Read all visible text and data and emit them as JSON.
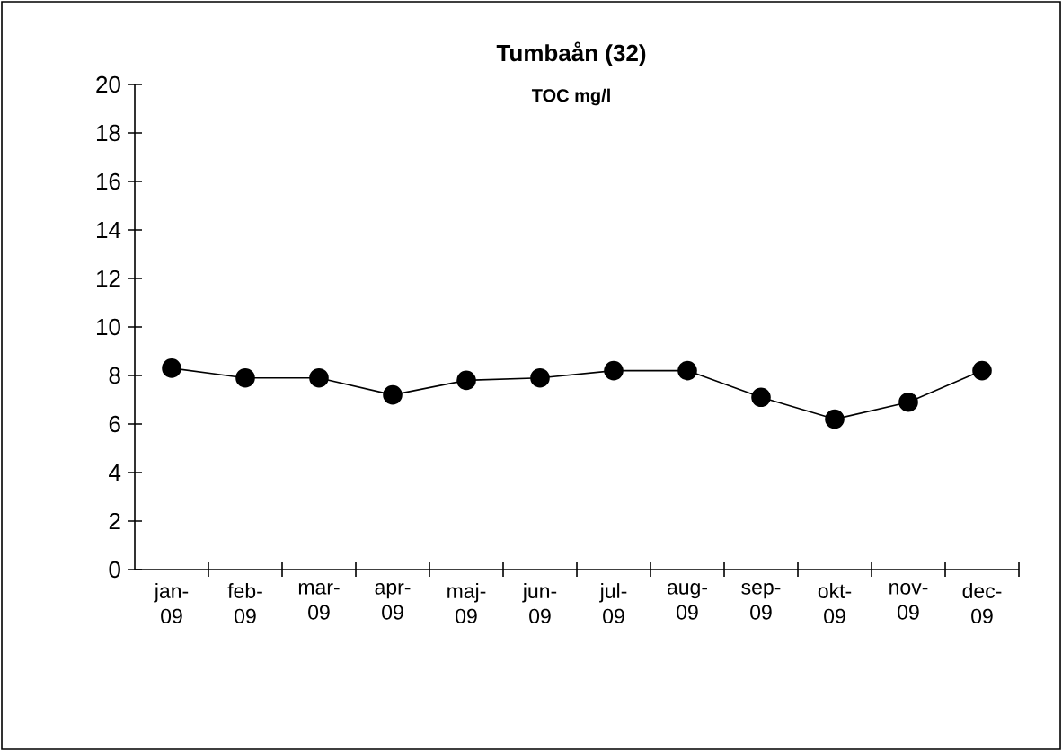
{
  "chart_data": {
    "type": "line",
    "title": "Tumbaån (32)",
    "subtitle": "TOC mg/l",
    "categories": [
      "jan-09",
      "feb-09",
      "mar-09",
      "apr-09",
      "maj-09",
      "jun-09",
      "jul-09",
      "aug-09",
      "sep-09",
      "okt-09",
      "nov-09",
      "dec-09"
    ],
    "series": [
      {
        "color": "#000000",
        "values": [
          8.3,
          7.9,
          7.9,
          7.2,
          7.8,
          7.9,
          8.2,
          8.2,
          7.1,
          6.2,
          6.9,
          8.2
        ]
      }
    ],
    "ylim": [
      0,
      20
    ],
    "yticks": [
      0,
      2,
      4,
      6,
      8,
      10,
      12,
      14,
      16,
      18,
      20
    ],
    "grid": false,
    "marker": "circle",
    "line_style": "solid"
  }
}
